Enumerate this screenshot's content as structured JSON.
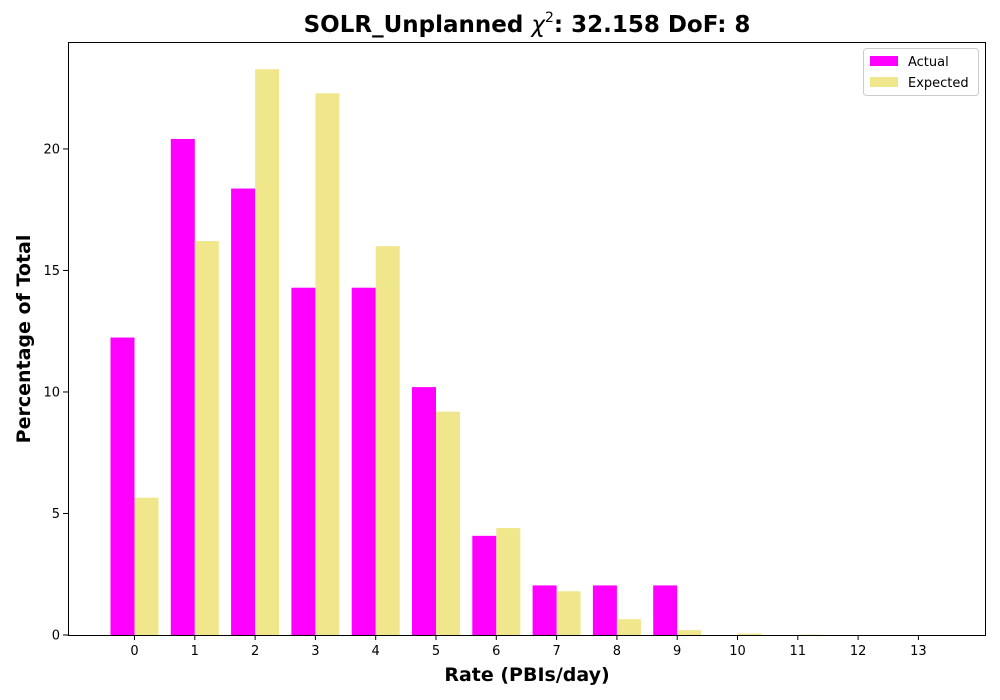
{
  "chart_data": {
    "type": "bar",
    "title_prefix": "SOLR_Unplanned ",
    "title_symbol": "χ",
    "title_superscript": "2",
    "title_suffix": ": 32.158 DoF: 8",
    "xlabel": "Rate (PBIs/day)",
    "ylabel": "Percentage of Total",
    "categories": [
      "0",
      "1",
      "2",
      "3",
      "4",
      "5",
      "6",
      "7",
      "8",
      "9",
      "10",
      "11",
      "12",
      "13"
    ],
    "yticks": [
      "0",
      "5",
      "10",
      "15",
      "20"
    ],
    "ylim": [
      0,
      24.4
    ],
    "grid": false,
    "legend_position": "top-right",
    "series": [
      {
        "name": "Actual",
        "color": "#ff00ff",
        "values": [
          12.24,
          20.41,
          18.37,
          14.29,
          14.29,
          10.2,
          4.08,
          2.04,
          2.04,
          2.04,
          0,
          0,
          0,
          0
        ]
      },
      {
        "name": "Expected",
        "color": "#f0e68c",
        "values": [
          5.65,
          16.21,
          23.28,
          22.29,
          16.0,
          9.19,
          4.4,
          1.8,
          0.65,
          0.2,
          0.06,
          0.015,
          0.003,
          0.001
        ]
      }
    ]
  }
}
